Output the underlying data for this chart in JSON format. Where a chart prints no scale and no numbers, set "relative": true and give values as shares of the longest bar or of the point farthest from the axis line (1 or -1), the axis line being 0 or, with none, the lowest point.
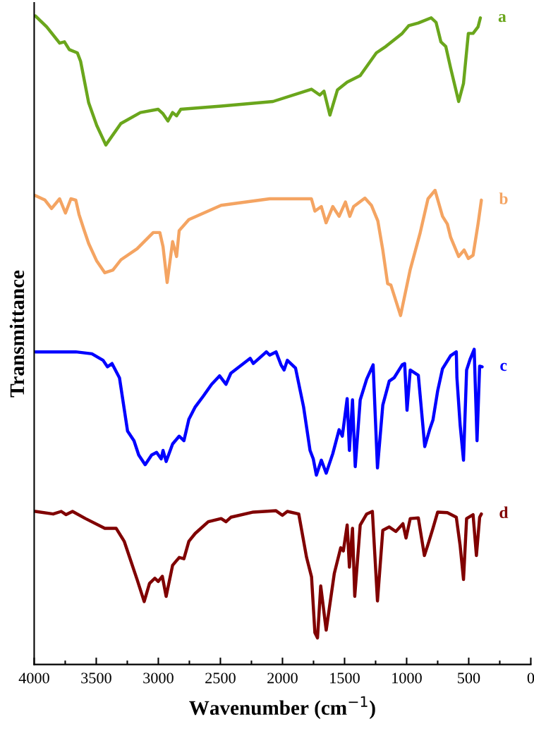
{
  "chart_data": {
    "type": "line",
    "relative": true,
    "xlabel": "Wavenumber (cm$^{−1}$)",
    "ylabel": "Transmittance",
    "xlim": [
      4000,
      0
    ],
    "xticks": [
      4000,
      {
        "value": 3750,
        "label": null
      },
      3500,
      {
        "value": 3250,
        "label": null
      },
      3000,
      {
        "value": 2750,
        "label": null
      },
      2500,
      {
        "value": 2250,
        "label": null
      },
      2000,
      {
        "value": 1750,
        "label": null
      },
      1500,
      {
        "value": 1250,
        "label": null
      },
      1000,
      {
        "value": 750,
        "label": null
      },
      500,
      {
        "value": 250,
        "label": null
      },
      0
    ],
    "tick_labels": "x",
    "grid": false,
    "legend": false,
    "marker": "none",
    "line_style": "solid",
    "series": [
      {
        "name": "a",
        "color": "#6aa61c",
        "x": [
          3990,
          3899,
          3795,
          3756,
          3717,
          3652,
          3626,
          3561,
          3496,
          3423,
          3302,
          3144,
          3001,
          2962,
          2923,
          2885,
          2853,
          2819,
          2494,
          2077,
          1767,
          1700,
          1666,
          1618,
          1557,
          1479,
          1374,
          1244,
          1167,
          1036,
          983,
          906,
          802,
          763,
          724,
          685,
          646,
          581,
          542,
          503,
          465,
          425,
          406
        ],
        "values": [
          1.0,
          0.983,
          0.958,
          0.96,
          0.948,
          0.943,
          0.93,
          0.866,
          0.831,
          0.801,
          0.834,
          0.851,
          0.856,
          0.849,
          0.838,
          0.851,
          0.846,
          0.856,
          0.861,
          0.868,
          0.887,
          0.878,
          0.884,
          0.847,
          0.886,
          0.898,
          0.908,
          0.943,
          0.953,
          0.973,
          0.985,
          0.989,
          0.997,
          0.99,
          0.96,
          0.953,
          0.92,
          0.868,
          0.896,
          0.973,
          0.973,
          0.983,
          0.997
        ]
      },
      {
        "name": "b",
        "color": "#f4a462",
        "x": [
          3990,
          3913,
          3860,
          3795,
          3748,
          3704,
          3665,
          3639,
          3600,
          3561,
          3496,
          3431,
          3366,
          3301,
          3171,
          3041,
          2988,
          2962,
          2929,
          2885,
          2853,
          2832,
          2754,
          2494,
          2103,
          1767,
          1739,
          1687,
          1649,
          1595,
          1544,
          1493,
          1458,
          1427,
          1336,
          1284,
          1232,
          1192,
          1153,
          1127,
          1049,
          971,
          893,
          828,
          771,
          711,
          672,
          646,
          581,
          537,
          503,
          465,
          425,
          398
        ],
        "values": [
          0.723,
          0.716,
          0.703,
          0.718,
          0.696,
          0.718,
          0.716,
          0.694,
          0.671,
          0.649,
          0.622,
          0.604,
          0.608,
          0.624,
          0.641,
          0.666,
          0.666,
          0.644,
          0.589,
          0.652,
          0.629,
          0.669,
          0.686,
          0.708,
          0.718,
          0.718,
          0.699,
          0.706,
          0.681,
          0.706,
          0.691,
          0.713,
          0.691,
          0.706,
          0.719,
          0.708,
          0.684,
          0.639,
          0.587,
          0.585,
          0.538,
          0.609,
          0.664,
          0.718,
          0.731,
          0.691,
          0.679,
          0.659,
          0.629,
          0.639,
          0.626,
          0.631,
          0.679,
          0.716
        ]
      },
      {
        "name": "c",
        "color": "#0000ff",
        "x": [
          3990,
          3665,
          3535,
          3445,
          3410,
          3373,
          3313,
          3248,
          3196,
          3158,
          3106,
          3054,
          3014,
          2977,
          2962,
          2937,
          2885,
          2832,
          2794,
          2754,
          2703,
          2637,
          2571,
          2507,
          2455,
          2416,
          2260,
          2235,
          2130,
          2103,
          2052,
          2012,
          1987,
          1961,
          1895,
          1830,
          1778,
          1752,
          1727,
          1687,
          1648,
          1595,
          1544,
          1518,
          1479,
          1461,
          1436,
          1414,
          1374,
          1322,
          1270,
          1235,
          1192,
          1140,
          1101,
          1036,
          1016,
          997,
          971,
          906,
          854,
          815,
          788,
          750,
          711,
          646,
          600,
          595,
          569,
          542,
          517,
          490,
          456,
          433,
          412,
          392
        ],
        "values": [
          0.482,
          0.482,
          0.479,
          0.469,
          0.459,
          0.464,
          0.442,
          0.36,
          0.345,
          0.323,
          0.308,
          0.323,
          0.327,
          0.317,
          0.33,
          0.313,
          0.34,
          0.352,
          0.345,
          0.378,
          0.397,
          0.414,
          0.432,
          0.445,
          0.432,
          0.449,
          0.472,
          0.464,
          0.482,
          0.477,
          0.482,
          0.462,
          0.454,
          0.469,
          0.457,
          0.397,
          0.33,
          0.317,
          0.292,
          0.315,
          0.295,
          0.325,
          0.362,
          0.352,
          0.41,
          0.33,
          0.408,
          0.305,
          0.408,
          0.44,
          0.462,
          0.303,
          0.4,
          0.437,
          0.442,
          0.462,
          0.464,
          0.392,
          0.454,
          0.446,
          0.336,
          0.362,
          0.377,
          0.422,
          0.456,
          0.476,
          0.482,
          0.442,
          0.369,
          0.315,
          0.454,
          0.47,
          0.486,
          0.345,
          0.46,
          0.459
        ]
      },
      {
        "name": "d",
        "color": "#800000",
        "x": [
          3990,
          3847,
          3782,
          3743,
          3691,
          3587,
          3431,
          3340,
          3275,
          3222,
          3171,
          3114,
          3071,
          3028,
          3001,
          2968,
          2937,
          2885,
          2832,
          2794,
          2754,
          2703,
          2598,
          2494,
          2455,
          2416,
          2235,
          2052,
          2001,
          1961,
          1869,
          1806,
          1766,
          1739,
          1718,
          1692,
          1648,
          1583,
          1531,
          1510,
          1479,
          1461,
          1436,
          1418,
          1374,
          1322,
          1276,
          1235,
          1192,
          1140,
          1087,
          1030,
          1005,
          971,
          906,
          857,
          828,
          788,
          750,
          672,
          600,
          569,
          542,
          517,
          465,
          438,
          412,
          398
        ],
        "values": [
          0.236,
          0.232,
          0.236,
          0.231,
          0.236,
          0.225,
          0.21,
          0.21,
          0.19,
          0.16,
          0.131,
          0.097,
          0.125,
          0.133,
          0.128,
          0.136,
          0.105,
          0.153,
          0.165,
          0.163,
          0.19,
          0.202,
          0.22,
          0.225,
          0.22,
          0.227,
          0.235,
          0.237,
          0.23,
          0.236,
          0.232,
          0.165,
          0.135,
          0.049,
          0.041,
          0.121,
          0.053,
          0.14,
          0.18,
          0.175,
          0.215,
          0.15,
          0.21,
          0.105,
          0.215,
          0.232,
          0.236,
          0.098,
          0.207,
          0.212,
          0.205,
          0.217,
          0.195,
          0.225,
          0.226,
          0.168,
          0.185,
          0.21,
          0.235,
          0.234,
          0.227,
          0.183,
          0.131,
          0.225,
          0.231,
          0.168,
          0.227,
          0.232
        ]
      }
    ]
  }
}
